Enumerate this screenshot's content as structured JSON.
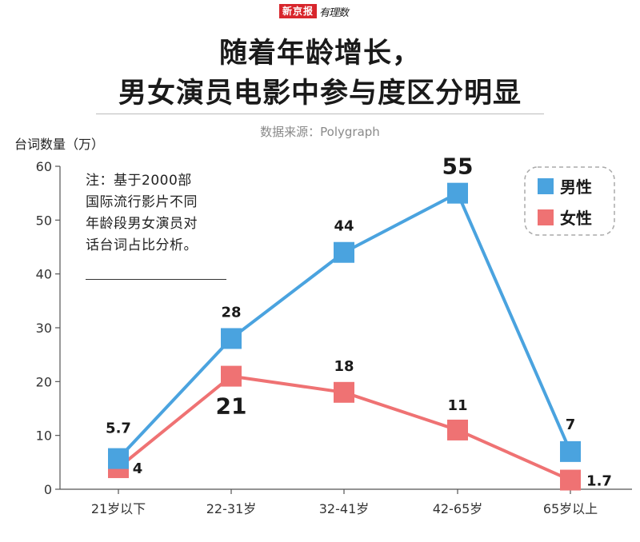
{
  "logo": {
    "brand": "新京报",
    "sub": "有理数"
  },
  "title": {
    "line1": "随着年龄增长，",
    "line2": "男女演员电影中参与度区分明显"
  },
  "source": "数据来源：Polygraph",
  "note": {
    "lines": [
      "注：基于2000部",
      "国际流行影片不同",
      "年龄段男女演员对",
      "话台词占比分析。"
    ]
  },
  "colors": {
    "male": "#4aa3df",
    "female": "#ef7273",
    "axis": "#555555",
    "legend_border": "#aaaaaa"
  },
  "chart_data": {
    "type": "line",
    "ylabel": "台词数量（万）",
    "ylim": [
      0,
      60
    ],
    "yticks": [
      0,
      10,
      20,
      30,
      40,
      50,
      60
    ],
    "categories": [
      "21岁以下",
      "22-31岁",
      "32-41岁",
      "42-65岁",
      "65岁以上"
    ],
    "series": [
      {
        "name": "男性",
        "color": "#4aa3df",
        "values": [
          5.7,
          28,
          44,
          55,
          7
        ],
        "labels": [
          "5.7",
          "28",
          "44",
          "55",
          "7"
        ]
      },
      {
        "name": "女性",
        "color": "#ef7273",
        "values": [
          4,
          21,
          18,
          11,
          1.7
        ],
        "labels": [
          "4",
          "21",
          "18",
          "11",
          "1.7"
        ]
      }
    ],
    "legend": {
      "position": "top-right",
      "style": "dashed-rounded"
    },
    "grid": false,
    "marker": "square"
  }
}
